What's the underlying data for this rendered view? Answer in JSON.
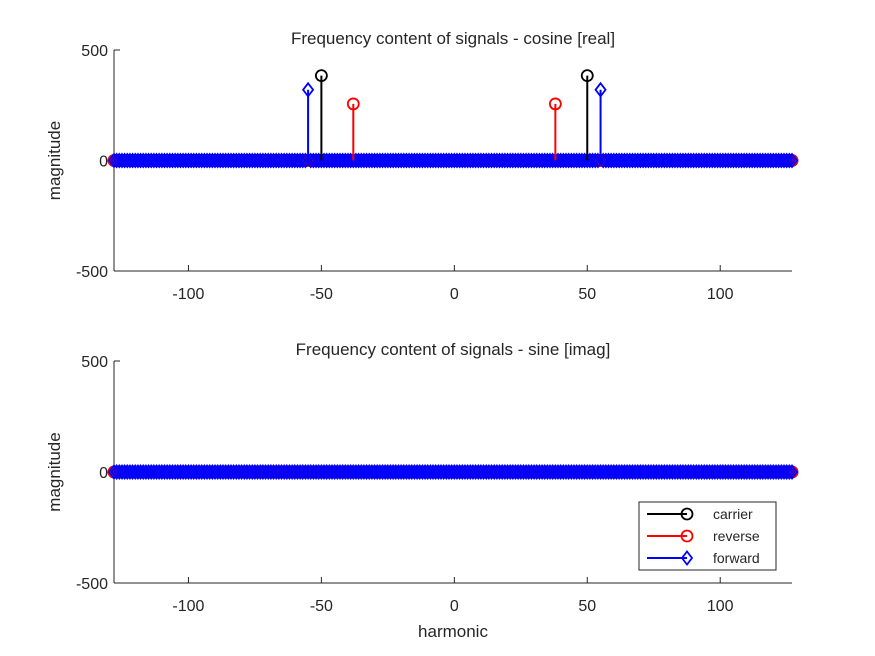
{
  "chart_data": [
    {
      "type": "stem",
      "title": "Frequency content of signals - cosine [real]",
      "xlabel": "",
      "ylabel": "magnitude",
      "xlim": [
        -128,
        127
      ],
      "ylim": [
        -500,
        500
      ],
      "xticks": [
        -100,
        -50,
        0,
        50,
        100
      ],
      "xtick_labels": [
        "-100",
        "-50",
        "0",
        "50",
        "100"
      ],
      "yticks": [
        -500,
        0,
        500
      ],
      "ytick_labels": [
        "-500",
        "0",
        "500"
      ],
      "grid": false,
      "series": [
        {
          "name": "carrier",
          "color": "#000000",
          "marker": "circle",
          "nonzero": [
            {
              "x": -50,
              "y": 384
            },
            {
              "x": 50,
              "y": 384
            }
          ]
        },
        {
          "name": "reverse",
          "color": "#ff0000",
          "marker": "circle",
          "nonzero": [
            {
              "x": -38,
              "y": 256
            },
            {
              "x": 38,
              "y": 256
            }
          ]
        },
        {
          "name": "forward",
          "color": "#0000ff",
          "marker": "diamond",
          "nonzero": [
            {
              "x": -55,
              "y": 320
            },
            {
              "x": 55,
              "y": 320
            }
          ]
        }
      ]
    },
    {
      "type": "stem",
      "title": "Frequency content of signals - sine [imag]",
      "xlabel": "harmonic",
      "ylabel": "magnitude",
      "xlim": [
        -128,
        127
      ],
      "ylim": [
        -500,
        500
      ],
      "xticks": [
        -100,
        -50,
        0,
        50,
        100
      ],
      "xtick_labels": [
        "-100",
        "-50",
        "0",
        "50",
        "100"
      ],
      "yticks": [
        -500,
        0,
        500
      ],
      "ytick_labels": [
        "-500",
        "0",
        "500"
      ],
      "grid": false,
      "legend": {
        "location": "bottom-right",
        "entries": [
          "carrier",
          "reverse",
          "forward"
        ]
      },
      "series": [
        {
          "name": "carrier",
          "color": "#000000",
          "marker": "circle",
          "nonzero": []
        },
        {
          "name": "reverse",
          "color": "#ff0000",
          "marker": "circle",
          "nonzero": []
        },
        {
          "name": "forward",
          "color": "#0000ff",
          "marker": "diamond",
          "nonzero": []
        }
      ]
    }
  ]
}
